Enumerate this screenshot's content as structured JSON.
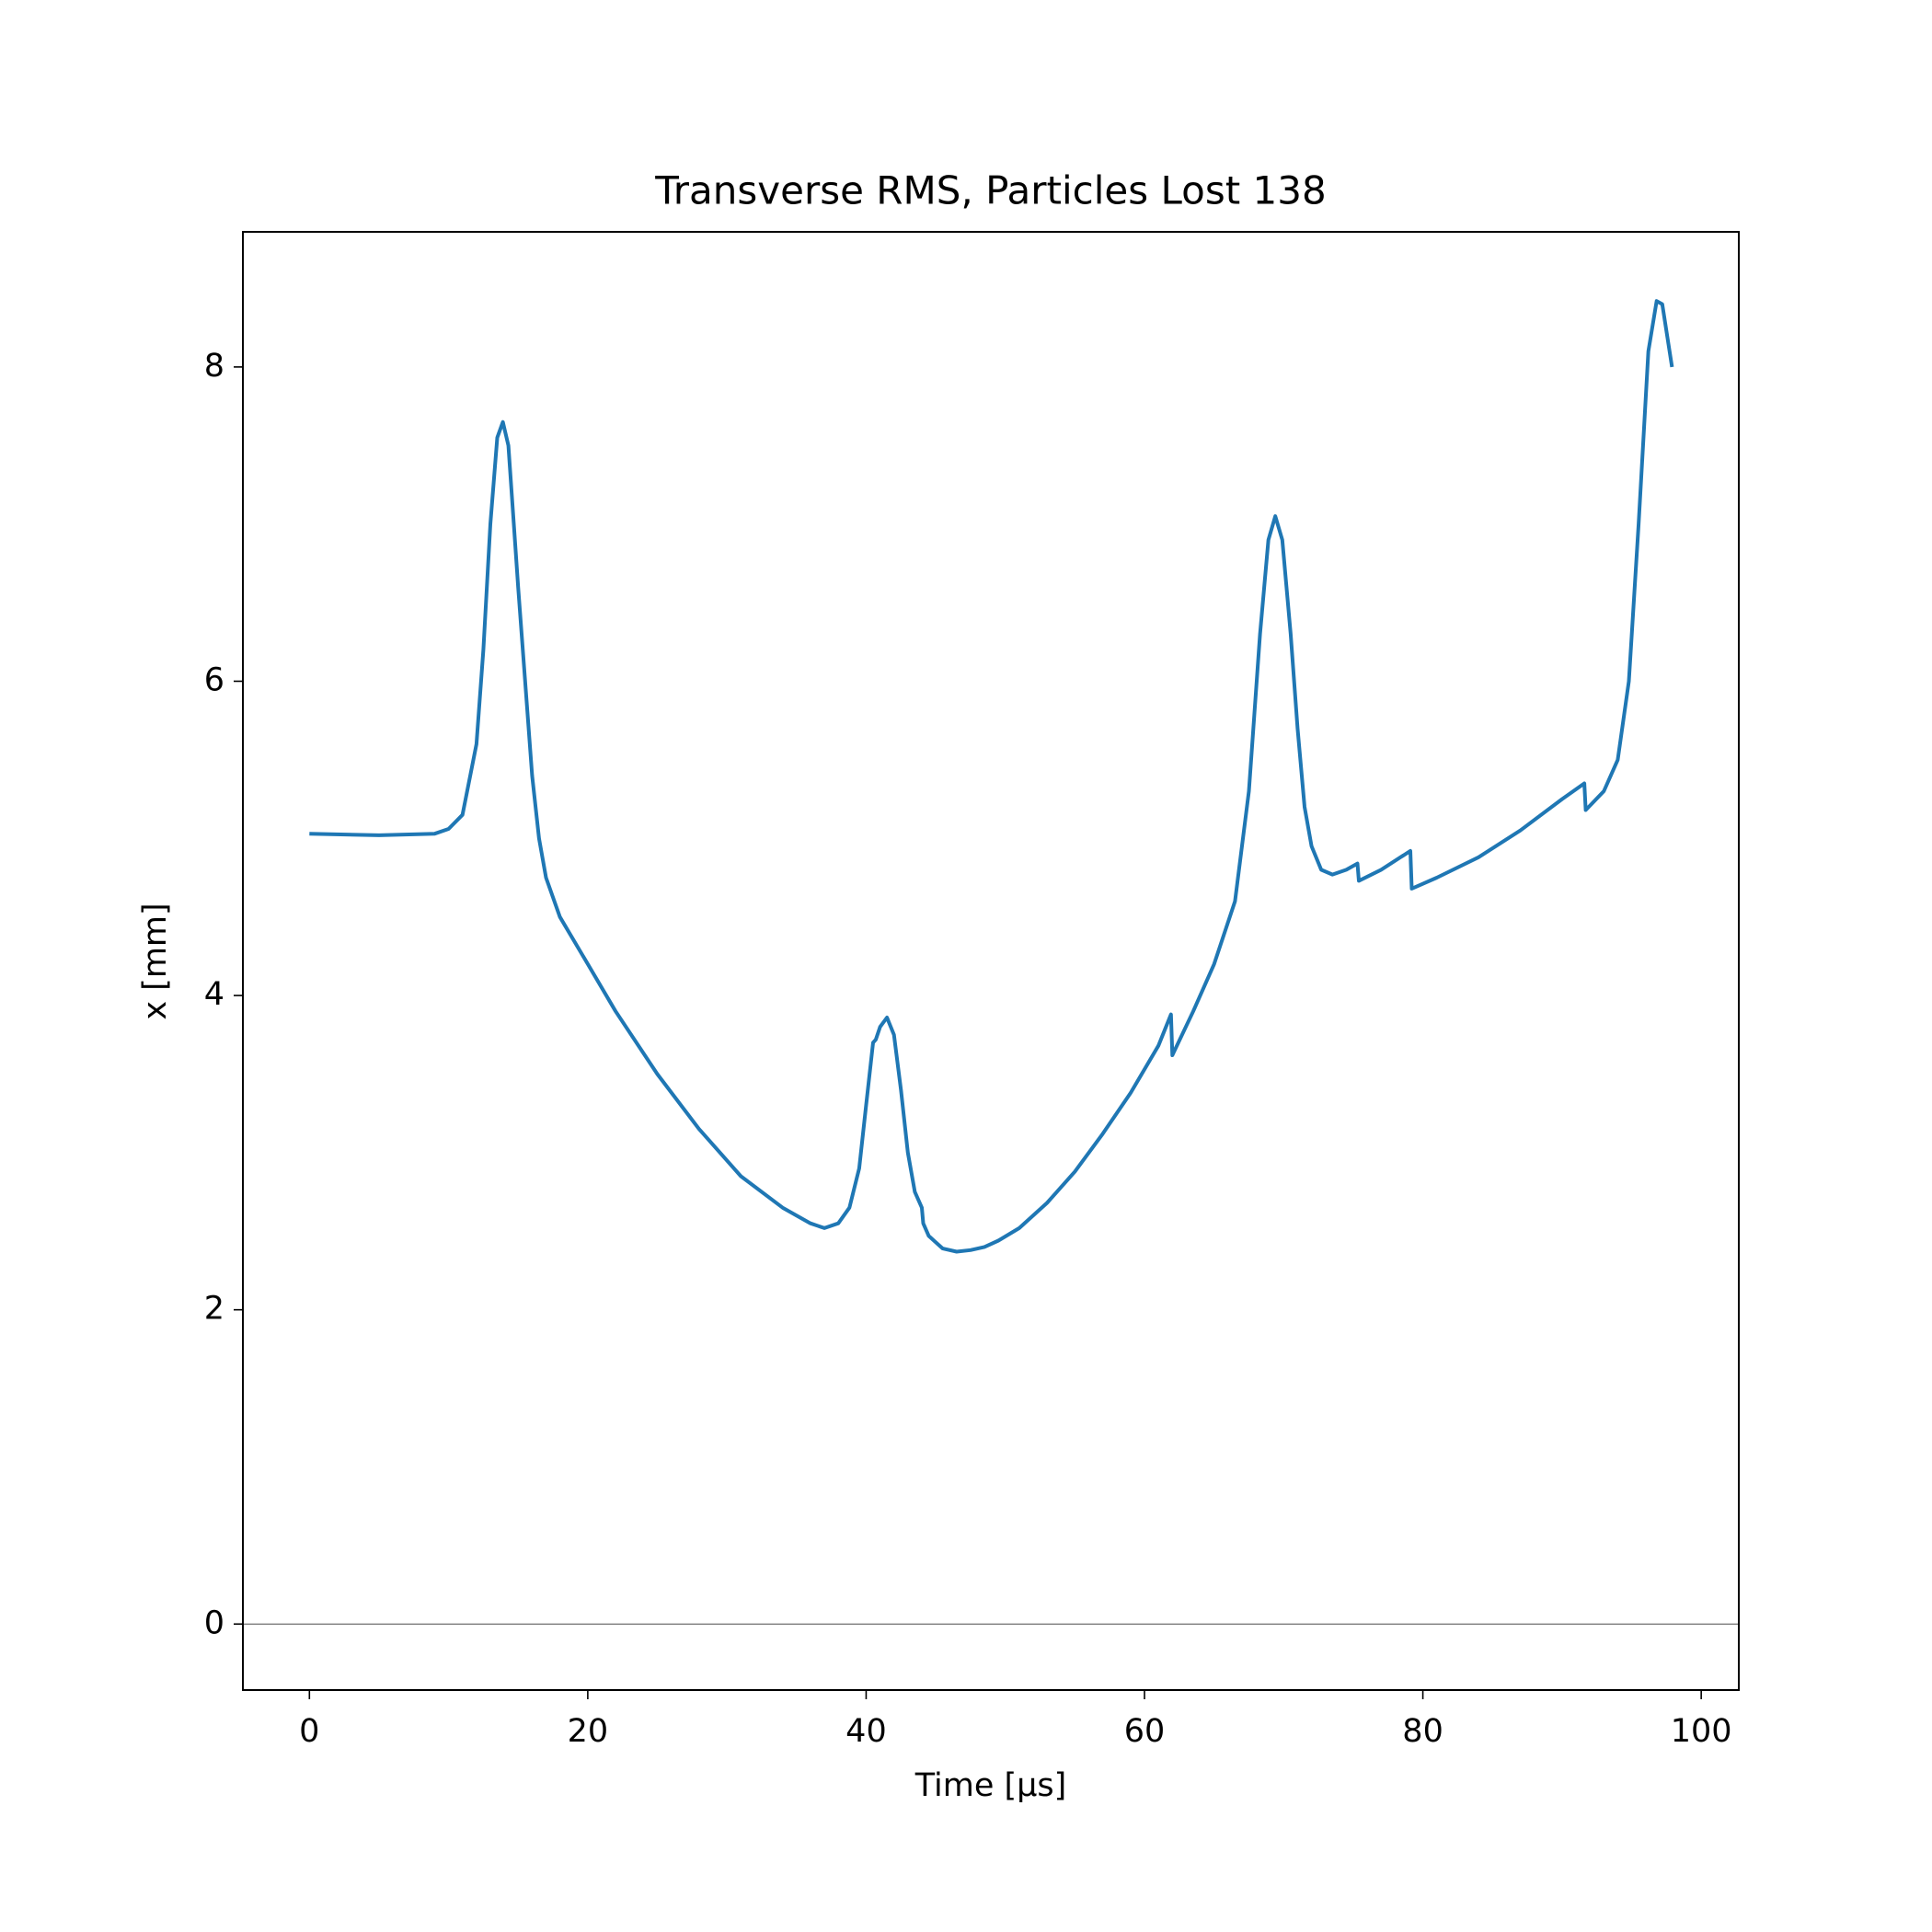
{
  "chart_data": {
    "type": "line",
    "title": "Transverse RMS, Particles Lost 138",
    "x_label": "Time [μs]",
    "y_label": "x [mm]",
    "x": [
      0,
      5,
      9,
      10,
      11,
      12,
      12.5,
      13,
      13.5,
      13.9,
      14.3,
      15,
      16,
      16.5,
      17,
      18,
      20,
      22,
      25,
      28,
      31,
      34,
      36,
      37,
      38,
      38.8,
      39.5,
      40,
      40.5,
      40.7,
      41,
      41.5,
      42,
      42.5,
      43,
      43.5,
      44,
      44.1,
      44.5,
      45.5,
      46.5,
      47.5,
      48.5,
      49.5,
      51,
      53,
      55,
      57,
      59,
      61,
      61.9,
      62,
      63.5,
      65,
      66.5,
      67.5,
      68.3,
      68.9,
      69.4,
      69.9,
      70.5,
      71,
      71.5,
      72,
      72.7,
      73.5,
      74.5,
      75.3,
      75.4,
      77,
      79.1,
      79.2,
      81,
      84,
      87,
      90,
      91.6,
      91.7,
      93,
      94,
      94.8,
      95.5,
      96.2,
      96.8,
      97.2,
      97.9
    ],
    "values": [
      5.03,
      5.02,
      5.03,
      5.06,
      5.15,
      5.6,
      6.2,
      7.0,
      7.55,
      7.65,
      7.5,
      6.6,
      5.4,
      5.0,
      4.75,
      4.5,
      4.2,
      3.9,
      3.5,
      3.15,
      2.85,
      2.65,
      2.55,
      2.52,
      2.55,
      2.65,
      2.9,
      3.3,
      3.7,
      3.72,
      3.8,
      3.86,
      3.75,
      3.4,
      3.0,
      2.75,
      2.65,
      2.55,
      2.47,
      2.39,
      2.37,
      2.38,
      2.4,
      2.44,
      2.52,
      2.68,
      2.88,
      3.12,
      3.38,
      3.68,
      3.88,
      3.62,
      3.9,
      4.2,
      4.6,
      5.3,
      6.3,
      6.9,
      7.05,
      6.9,
      6.3,
      5.7,
      5.2,
      4.95,
      4.8,
      4.77,
      4.8,
      4.84,
      4.73,
      4.8,
      4.92,
      4.68,
      4.75,
      4.88,
      5.05,
      5.25,
      5.35,
      5.18,
      5.3,
      5.5,
      6.0,
      7.0,
      8.1,
      8.42,
      8.4,
      8.0
    ],
    "color": "#1f77b4",
    "xlim": [
      -4.78,
      102.7
    ],
    "ylim": [
      -0.42,
      8.86
    ],
    "xticks": [
      0,
      20,
      40,
      60,
      80,
      100
    ],
    "yticks": [
      0,
      2,
      4,
      6,
      8
    ],
    "reference_line": 0,
    "grid": false
  }
}
